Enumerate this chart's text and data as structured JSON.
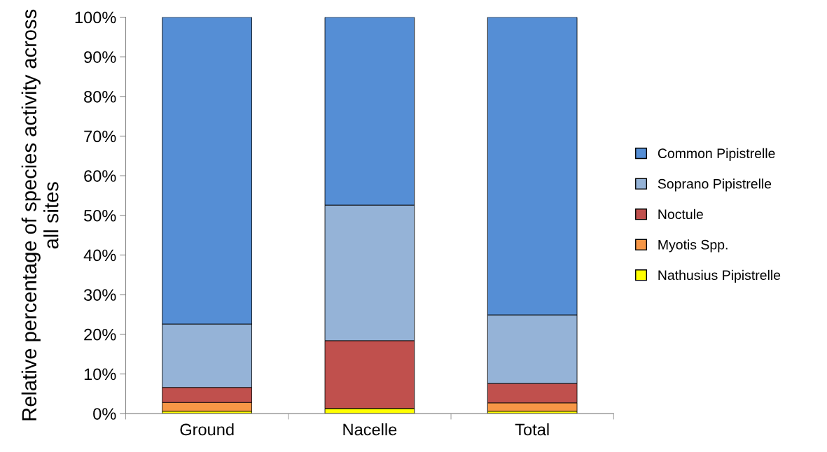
{
  "chart_data": {
    "type": "bar",
    "stacked": true,
    "ylabel": "Relative percentage of species activity across all sites",
    "categories": [
      "Ground",
      "Nacelle",
      "Total"
    ],
    "series": [
      {
        "name": "Nathusius Pipistrelle",
        "color": "#ffff00",
        "values": [
          0.6,
          1.3,
          0.6
        ]
      },
      {
        "name": "Myotis Spp.",
        "color": "#f79646",
        "values": [
          2.2,
          0,
          2.1
        ]
      },
      {
        "name": "Noctule",
        "color": "#c0504d",
        "values": [
          3.8,
          17.1,
          4.9
        ]
      },
      {
        "name": "Soprano Pipistrelle",
        "color": "#95b3d7",
        "values": [
          16.0,
          34.2,
          17.3
        ]
      },
      {
        "name": "Common Pipistrelle",
        "color": "#558ed5",
        "values": [
          77.4,
          47.4,
          75.1
        ]
      }
    ],
    "ylim": [
      0,
      100
    ],
    "yticks": [
      {
        "value": 0,
        "label": "0%"
      },
      {
        "value": 10,
        "label": "10%"
      },
      {
        "value": 20,
        "label": "20%"
      },
      {
        "value": 30,
        "label": "30%"
      },
      {
        "value": 40,
        "label": "40%"
      },
      {
        "value": 50,
        "label": "50%"
      },
      {
        "value": 60,
        "label": "60%"
      },
      {
        "value": 70,
        "label": "70%"
      },
      {
        "value": 80,
        "label": "80%"
      },
      {
        "value": 90,
        "label": "90%"
      },
      {
        "value": 100,
        "label": "100%"
      }
    ],
    "grid": false,
    "legend": "right"
  }
}
